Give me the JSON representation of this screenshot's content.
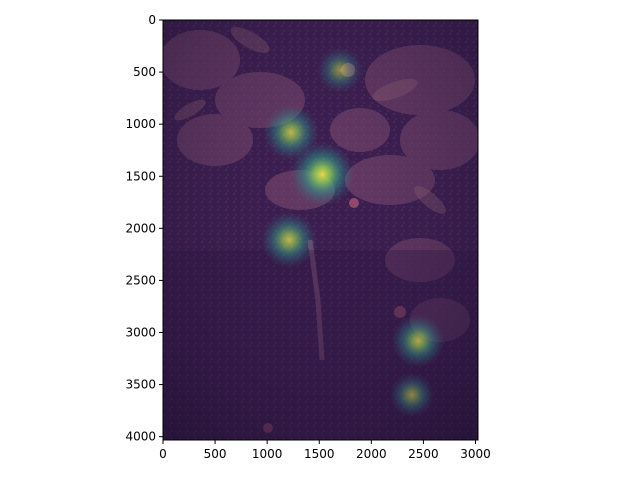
{
  "image": {
    "description_colors": {
      "base": "#3b1e4f",
      "foliage": "#7a4a6e",
      "glow_outer": "#2a8f8a",
      "glow_mid": "#3fbf7a",
      "glow_core": "#e8d048"
    },
    "extent": {
      "x": [
        0,
        3024
      ],
      "y": [
        4032,
        0
      ]
    }
  },
  "axes": {
    "x": {
      "ticks": [
        0,
        500,
        1000,
        1500,
        2000,
        2500,
        3000
      ],
      "labels": [
        "0",
        "500",
        "1000",
        "1500",
        "2000",
        "2500",
        "3000"
      ]
    },
    "y": {
      "ticks": [
        0,
        500,
        1000,
        1500,
        2000,
        2500,
        3000,
        3500,
        4000
      ],
      "labels": [
        "0",
        "500",
        "1000",
        "1500",
        "2000",
        "2500",
        "3000",
        "3500",
        "4000"
      ]
    }
  },
  "hotspots": [
    {
      "x": 1530,
      "y": 1480,
      "intensity": 1.0
    },
    {
      "x": 1230,
      "y": 1080,
      "intensity": 0.7
    },
    {
      "x": 1210,
      "y": 2110,
      "intensity": 0.7
    },
    {
      "x": 2450,
      "y": 3080,
      "intensity": 0.6
    },
    {
      "x": 1700,
      "y": 480,
      "intensity": 0.35
    },
    {
      "x": 2390,
      "y": 3600,
      "intensity": 0.3
    }
  ]
}
